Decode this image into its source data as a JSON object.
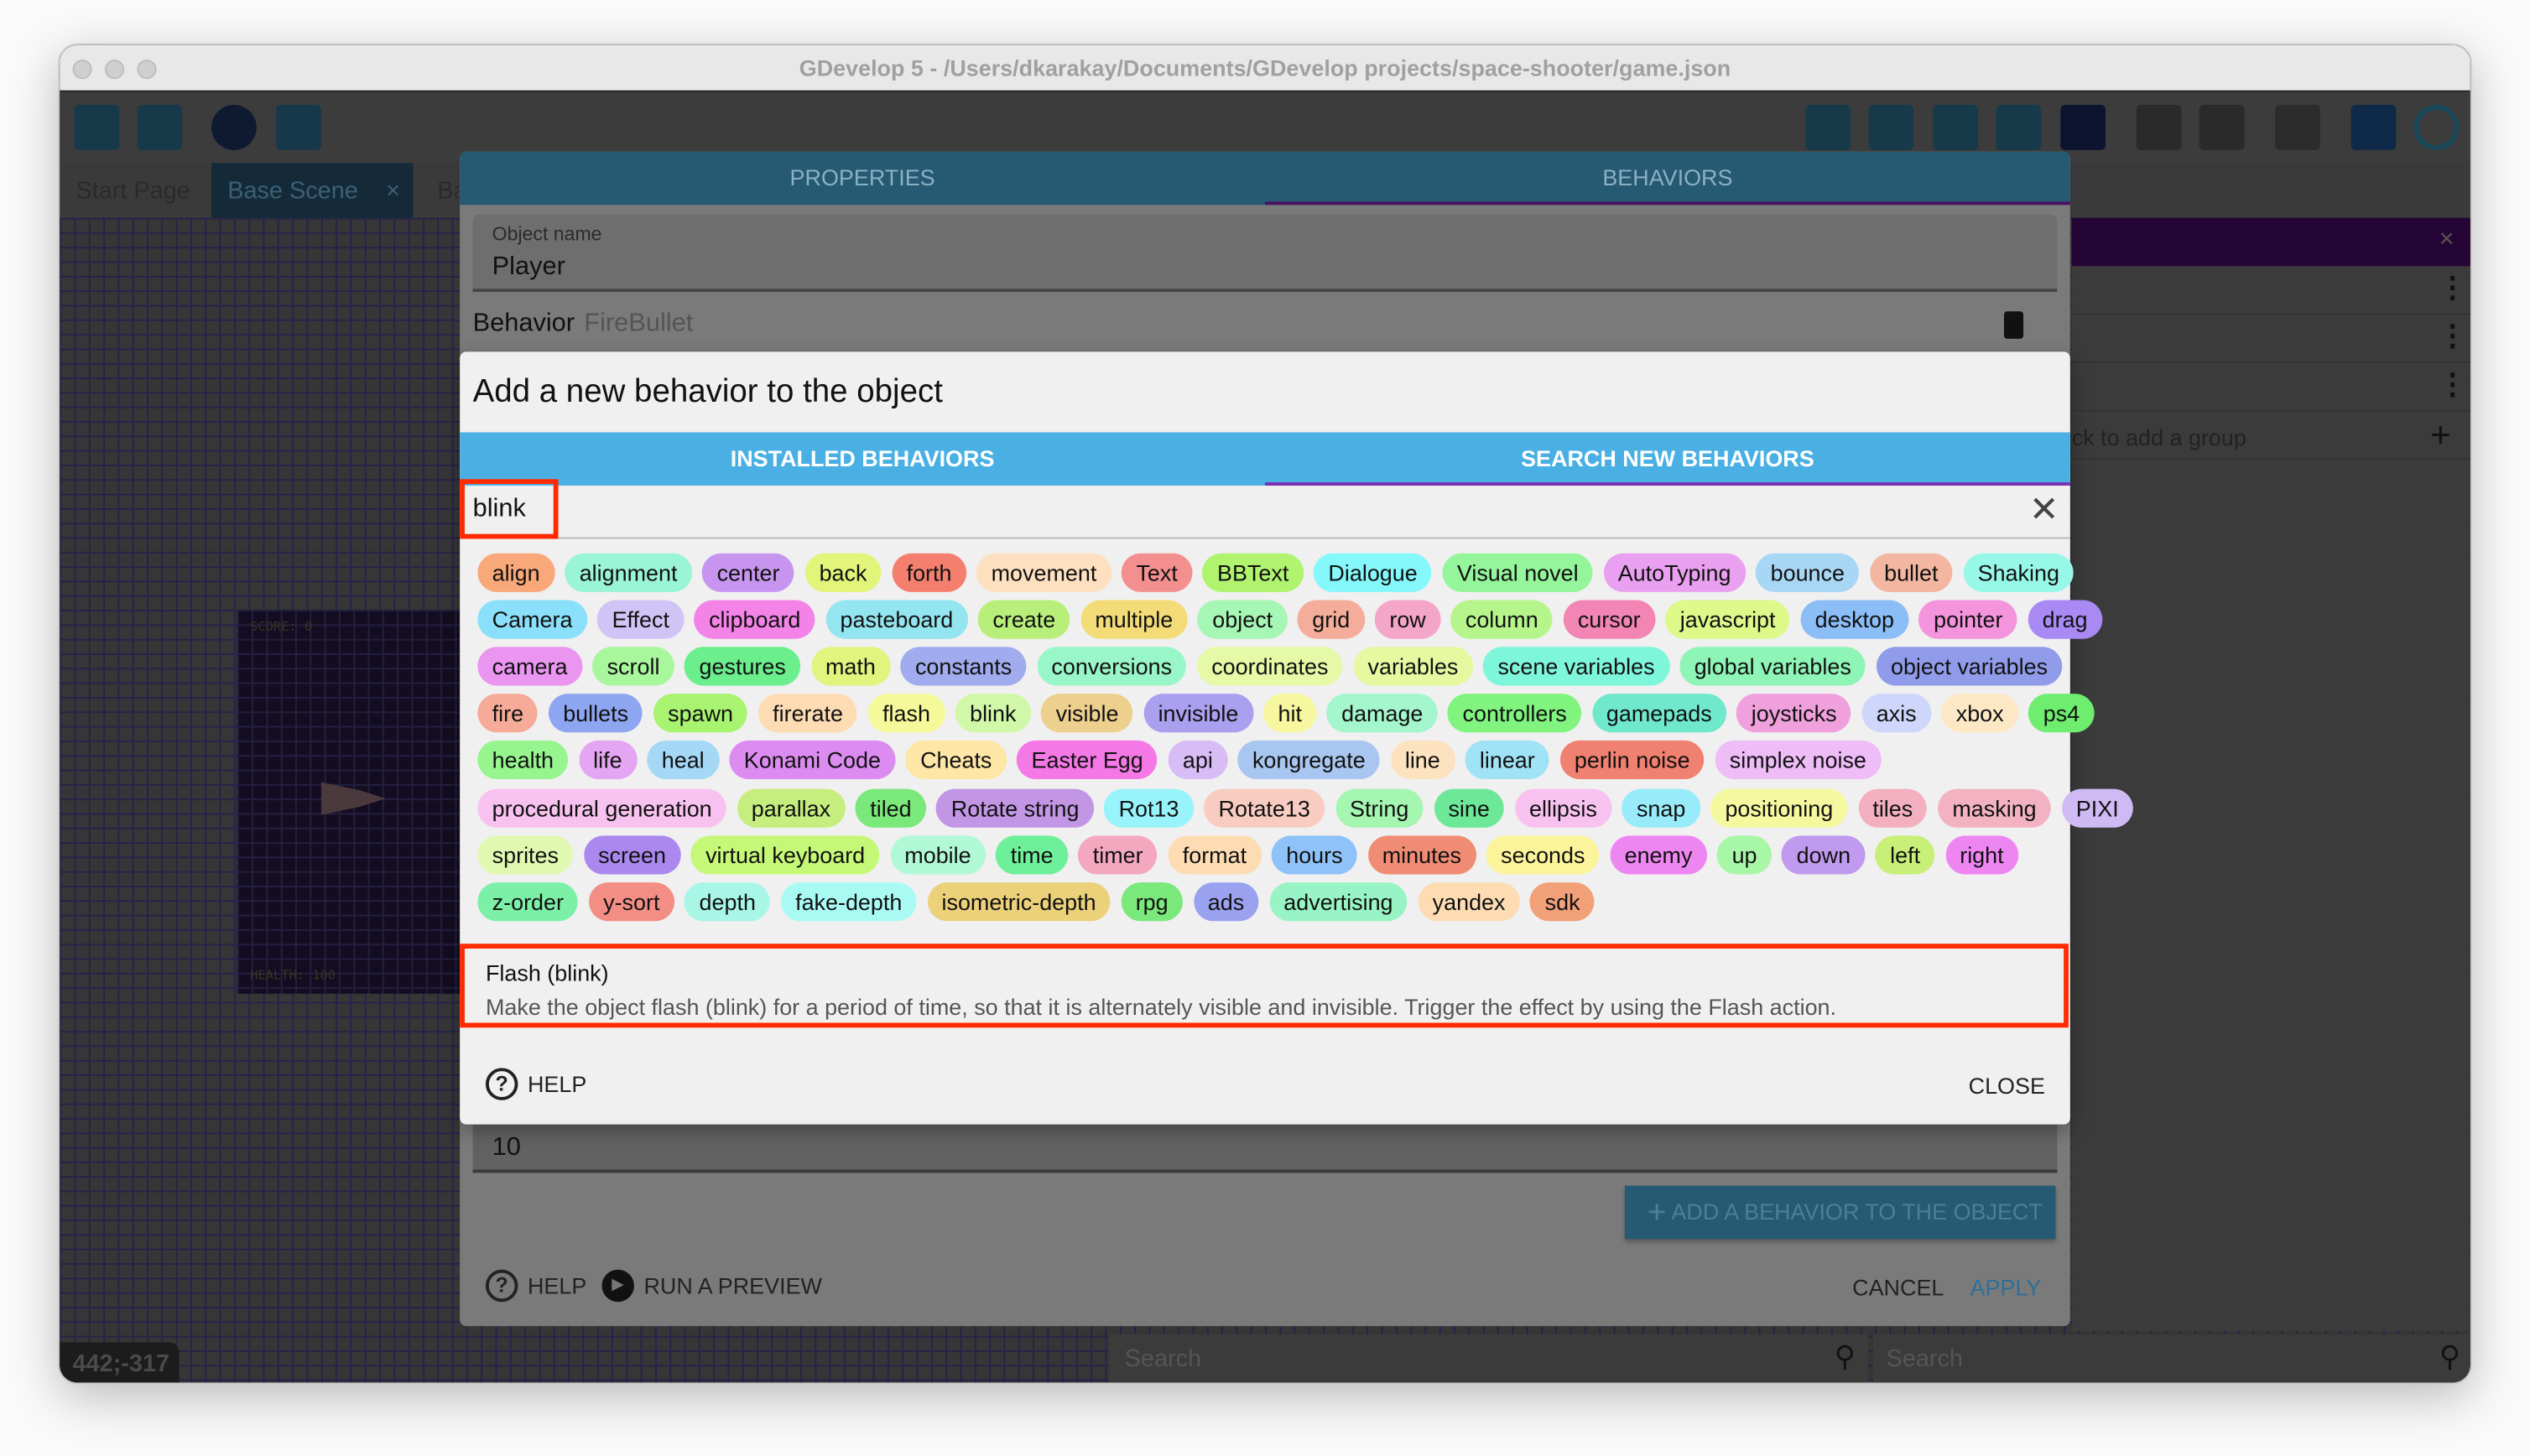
{
  "window": {
    "title": "GDevelop 5 - /Users/dkarakay/Documents/GDevelop projects/space-shooter/game.json"
  },
  "tabs": [
    {
      "label": "Start Page"
    },
    {
      "label": "Base Scene",
      "close": "×"
    },
    {
      "label": "Ba"
    }
  ],
  "canvas": {
    "coords": "442;-317",
    "score": "SCORE: 0",
    "health": "HEALTH: 100"
  },
  "right_panel": {
    "add_group": "ck to add a group",
    "close": "×"
  },
  "bottom": {
    "search1": "Search",
    "search2": "Search"
  },
  "outer": {
    "tabs": [
      "PROPERTIES",
      "BEHAVIORS"
    ],
    "object_name_label": "Object name",
    "object_name": "Player",
    "behavior_label": "Behavior",
    "behavior_name": "FireBullet",
    "field_value": "10",
    "add_behavior": "ADD A BEHAVIOR TO THE OBJECT",
    "help": "HELP",
    "run_preview": "RUN A PREVIEW",
    "cancel": "CANCEL",
    "apply": "APPLY"
  },
  "dialog": {
    "title": "Add a new behavior to the object",
    "tabs": [
      "INSTALLED BEHAVIORS",
      "SEARCH NEW BEHAVIORS"
    ],
    "search_value": "blink",
    "result_title": "Flash (blink)",
    "result_desc": "Make the object flash (blink) for a period of time, so that it is alternately visible and invisible. Trigger the effect by using the Flash action.",
    "help": "HELP",
    "close": "CLOSE"
  },
  "colors": {
    "accent": "#4ab0e4",
    "tab_underline": "#7b2fb5",
    "highlight": "#ff2a00",
    "apply": "#2d6f9a"
  },
  "tag_rows": [
    [
      [
        "align",
        "#f9a87a"
      ],
      [
        "alignment",
        "#99f5d5"
      ],
      [
        "center",
        "#c795f0"
      ],
      [
        "back",
        "#e2f57a"
      ],
      [
        "forth",
        "#f47f6f"
      ],
      [
        "movement",
        "#fde0c0"
      ],
      [
        "Text",
        "#f48f8f"
      ],
      [
        "BBText",
        "#b0f36f"
      ],
      [
        "Dialogue",
        "#84f8fb"
      ],
      [
        "Visual novel",
        "#94f59a"
      ],
      [
        "AutoTyping",
        "#eaa0f0"
      ],
      [
        "bounce",
        "#a8d6f5"
      ],
      [
        "bullet",
        "#f3b6a0"
      ],
      [
        "Shaking",
        "#98f8e8"
      ]
    ],
    [
      [
        "Camera",
        "#8ae0fb"
      ],
      [
        "Effect",
        "#d0c4f7"
      ],
      [
        "clipboard",
        "#f483e8"
      ],
      [
        "pasteboard",
        "#93e6f0"
      ],
      [
        "create",
        "#b8ef7a"
      ],
      [
        "multiple",
        "#f3dc78"
      ],
      [
        "object",
        "#a6f6b6"
      ],
      [
        "grid",
        "#f4ad9a"
      ],
      [
        "row",
        "#f4a6c8"
      ],
      [
        "column",
        "#b6f58c"
      ],
      [
        "cursor",
        "#f285b3"
      ],
      [
        "javascript",
        "#def88a"
      ],
      [
        "desktop",
        "#8bbdf6"
      ],
      [
        "pointer",
        "#f494dc"
      ],
      [
        "drag",
        "#a98af5"
      ]
    ],
    [
      [
        "camera",
        "#ea95f0"
      ],
      [
        "scroll",
        "#a8f79c"
      ],
      [
        "gestures",
        "#6bee8c"
      ],
      [
        "math",
        "#e0f47e"
      ],
      [
        "constants",
        "#a0acee"
      ],
      [
        "conversions",
        "#98f6c8"
      ],
      [
        "coordinates",
        "#e6f9a6"
      ],
      [
        "variables",
        "#e6f8a0"
      ],
      [
        "scene variables",
        "#7ef6da"
      ],
      [
        "global variables",
        "#8ef5b6"
      ],
      [
        "object variables",
        "#909cea"
      ]
    ],
    [
      [
        "fire",
        "#f5ab98"
      ],
      [
        "bullets",
        "#8ea6f1"
      ],
      [
        "spawn",
        "#a8f370"
      ],
      [
        "firerate",
        "#fddcb4"
      ],
      [
        "flash",
        "#f5f99a"
      ],
      [
        "blink",
        "#d0f8a8"
      ],
      [
        "visible",
        "#eed08e"
      ],
      [
        "invisible",
        "#aaa0ef"
      ],
      [
        "hit",
        "#f7f79f"
      ],
      [
        "damage",
        "#a4f6cc"
      ],
      [
        "controllers",
        "#80f47e"
      ],
      [
        "gamepads",
        "#6fe8cc"
      ],
      [
        "joysticks",
        "#f0a0dc"
      ],
      [
        "axis",
        "#cfd6fb"
      ],
      [
        "xbox",
        "#fde8c6"
      ],
      [
        "ps4",
        "#6eed6e"
      ]
    ],
    [
      [
        "health",
        "#96f58e"
      ],
      [
        "life",
        "#e4a6f2"
      ],
      [
        "heal",
        "#a4d8f6"
      ],
      [
        "Konami Code",
        "#dc8cf0"
      ],
      [
        "Cheats",
        "#fde6a6"
      ],
      [
        "Easter Egg",
        "#f478e6"
      ],
      [
        "api",
        "#d8bcf6"
      ],
      [
        "kongregate",
        "#a8c6ef"
      ],
      [
        "line",
        "#fde2c0"
      ],
      [
        "linear",
        "#a0e2f6"
      ],
      [
        "perlin noise",
        "#f08070"
      ],
      [
        "simplex noise",
        "#eebcf7"
      ]
    ],
    [
      [
        "procedural generation",
        "#f8c2f0"
      ],
      [
        "parallax",
        "#c6ee7e"
      ],
      [
        "tiled",
        "#7ae87a"
      ],
      [
        "Rotate string",
        "#c296e4"
      ],
      [
        "Rot13",
        "#98f4fa"
      ],
      [
        "Rotate13",
        "#f8ccc0"
      ],
      [
        "String",
        "#a4f6b0"
      ],
      [
        "sine",
        "#6ce898"
      ],
      [
        "ellipsis",
        "#f8c2f0"
      ],
      [
        "snap",
        "#98ecfa"
      ],
      [
        "positioning",
        "#f6f8a0"
      ],
      [
        "tiles",
        "#f2b0c0"
      ],
      [
        "masking",
        "#f2b2c2"
      ],
      [
        "PIXI",
        "#d0baf4"
      ]
    ],
    [
      [
        "sprites",
        "#e0f8b0"
      ],
      [
        "screen",
        "#aa88ee"
      ],
      [
        "virtual keyboard",
        "#c6f878"
      ],
      [
        "mobile",
        "#b0f8d6"
      ],
      [
        "time",
        "#6ef09a"
      ],
      [
        "timer",
        "#f4a8c0"
      ],
      [
        "format",
        "#fddcb4"
      ],
      [
        "hours",
        "#8ec2f8"
      ],
      [
        "minutes",
        "#f08c74"
      ],
      [
        "seconds",
        "#fbf49a"
      ],
      [
        "enemy",
        "#ee86f2"
      ],
      [
        "up",
        "#a8f7a6"
      ],
      [
        "down",
        "#c09aee"
      ],
      [
        "left",
        "#c8ef78"
      ],
      [
        "right",
        "#ee86f2"
      ]
    ],
    [
      [
        "z-order",
        "#7cf0a6"
      ],
      [
        "y-sort",
        "#f28e84"
      ],
      [
        "depth",
        "#a8f6e6"
      ],
      [
        "fake-depth",
        "#aafaf4"
      ],
      [
        "isometric-depth",
        "#ebd17a"
      ],
      [
        "rpg",
        "#7ae87a"
      ],
      [
        "ads",
        "#9aa2f0"
      ],
      [
        "advertising",
        "#98f4c4"
      ],
      [
        "yandex",
        "#fddcb4"
      ],
      [
        "sdk",
        "#f2a078"
      ]
    ]
  ]
}
